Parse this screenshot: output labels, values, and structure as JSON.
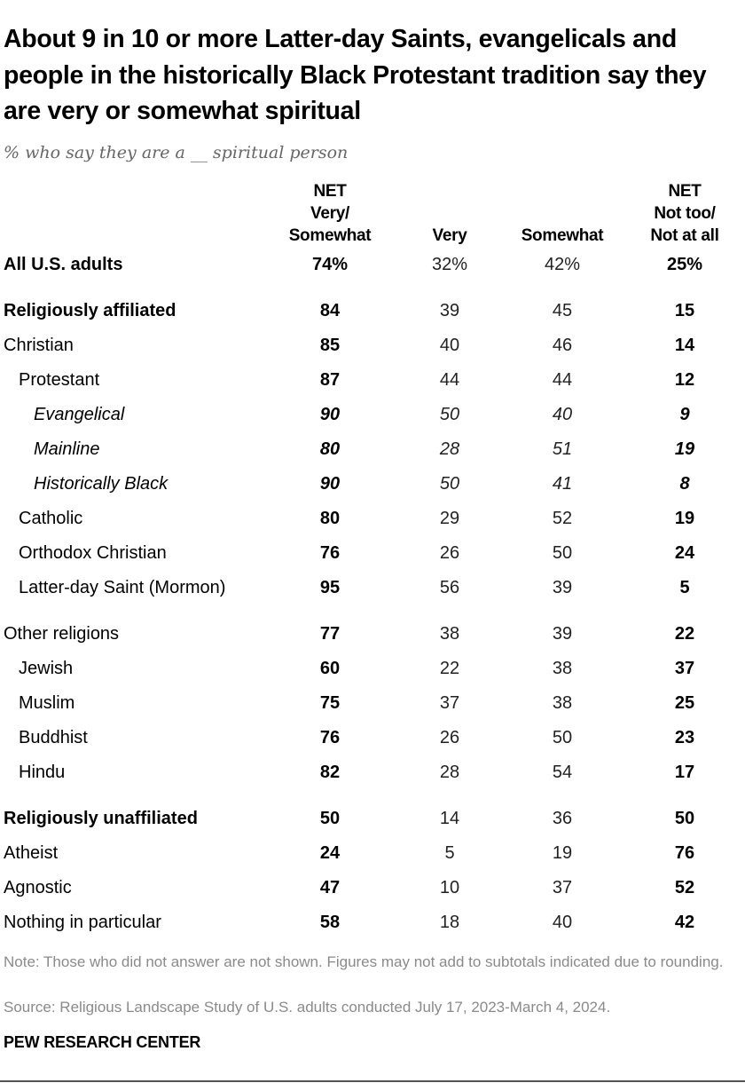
{
  "title": "About 9 in 10 or more Latter-day Saints, evangelicals and people in the historically Black Protestant tradition say they are very or somewhat spiritual",
  "subtitle": "% who say they are a __ spiritual person",
  "note": "Note: Those who did not answer are not shown. Figures may not add to subtotals indicated due to rounding.",
  "source": "Source: Religious Landscape Study of U.S. adults conducted July 17, 2023-March 4, 2024.",
  "brand": "PEW RESEARCH CENTER",
  "chart_data": {
    "type": "table",
    "columns": [
      {
        "line1": "NET",
        "line2": "Very/",
        "line3": "Somewhat"
      },
      {
        "line1": "",
        "line2": "",
        "line3": "Very"
      },
      {
        "line1": "",
        "line2": "",
        "line3": "Somewhat"
      },
      {
        "line1": "NET",
        "line2": "Not too/",
        "line3": "Not at all"
      }
    ],
    "rows": [
      {
        "label": "All U.S. adults",
        "style": "bold",
        "indent": 0,
        "values": [
          "74%",
          "32%",
          "42%",
          "25%"
        ]
      },
      {
        "label": "Religiously affiliated",
        "style": "bold",
        "indent": 0,
        "gap": true,
        "values": [
          "84",
          "39",
          "45",
          "15"
        ]
      },
      {
        "label": "Christian",
        "indent": 0,
        "values": [
          "85",
          "40",
          "46",
          "14"
        ]
      },
      {
        "label": "Protestant",
        "indent": 1,
        "values": [
          "87",
          "44",
          "44",
          "12"
        ]
      },
      {
        "label": "Evangelical",
        "style": "italic",
        "indent": 2,
        "values": [
          "90",
          "50",
          "40",
          "9"
        ]
      },
      {
        "label": "Mainline",
        "style": "italic",
        "indent": 2,
        "values": [
          "80",
          "28",
          "51",
          "19"
        ]
      },
      {
        "label": "Historically Black",
        "style": "italic",
        "indent": 2,
        "values": [
          "90",
          "50",
          "41",
          "8"
        ]
      },
      {
        "label": "Catholic",
        "indent": 1,
        "values": [
          "80",
          "29",
          "52",
          "19"
        ]
      },
      {
        "label": "Orthodox Christian",
        "indent": 1,
        "values": [
          "76",
          "26",
          "50",
          "24"
        ]
      },
      {
        "label": "Latter-day Saint (Mormon)",
        "indent": 1,
        "values": [
          "95",
          "56",
          "39",
          "5"
        ]
      },
      {
        "label": "Other religions",
        "indent": 0,
        "gap": true,
        "values": [
          "77",
          "38",
          "39",
          "22"
        ]
      },
      {
        "label": "Jewish",
        "indent": 1,
        "values": [
          "60",
          "22",
          "38",
          "37"
        ]
      },
      {
        "label": "Muslim",
        "indent": 1,
        "values": [
          "75",
          "37",
          "38",
          "25"
        ]
      },
      {
        "label": "Buddhist",
        "indent": 1,
        "values": [
          "76",
          "26",
          "50",
          "23"
        ]
      },
      {
        "label": "Hindu",
        "indent": 1,
        "values": [
          "82",
          "28",
          "54",
          "17"
        ]
      },
      {
        "label": "Religiously unaffiliated",
        "style": "bold",
        "indent": 0,
        "gap": true,
        "values": [
          "50",
          "14",
          "36",
          "50"
        ]
      },
      {
        "label": "Atheist",
        "indent": 0,
        "values": [
          "24",
          "5",
          "19",
          "76"
        ]
      },
      {
        "label": "Agnostic",
        "indent": 0,
        "values": [
          "47",
          "10",
          "37",
          "52"
        ]
      },
      {
        "label": "Nothing in particular",
        "indent": 0,
        "values": [
          "58",
          "18",
          "40",
          "42"
        ]
      }
    ]
  }
}
